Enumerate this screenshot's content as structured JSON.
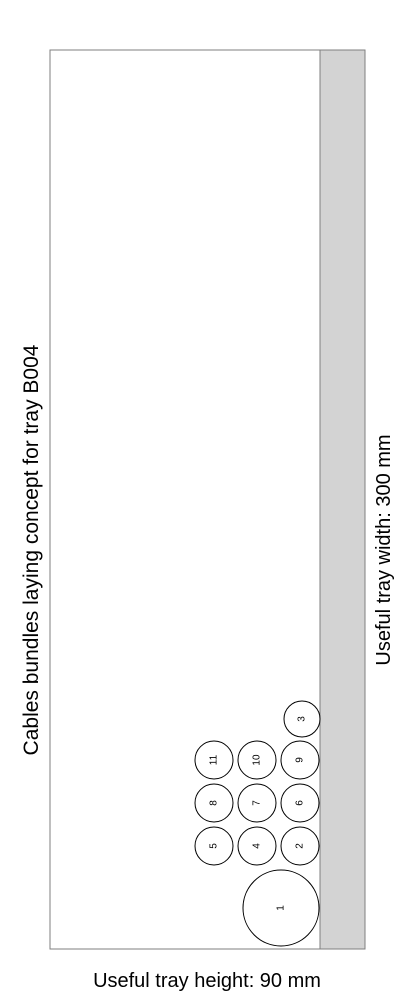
{
  "diagram": {
    "title": "Cables bundles laying concept for tray B004",
    "width_label": "Useful tray width: 300 mm",
    "height_label": "Useful tray height: 90 mm",
    "tray_fill_color": "#d3d3d3",
    "tray_border_color": "#7f7f7f",
    "cables": [
      {
        "id": "1"
      },
      {
        "id": "2"
      },
      {
        "id": "3"
      },
      {
        "id": "4"
      },
      {
        "id": "5"
      },
      {
        "id": "6"
      },
      {
        "id": "7"
      },
      {
        "id": "8"
      },
      {
        "id": "9"
      },
      {
        "id": "10"
      },
      {
        "id": "11"
      }
    ]
  }
}
